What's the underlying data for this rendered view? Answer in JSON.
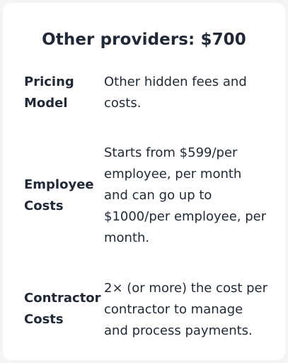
{
  "card": {
    "title": "Other providers: $700",
    "rows": [
      {
        "label_line1": "Pricing",
        "label_line2": "Model",
        "value_lines": [
          "Other hidden fees and",
          "costs."
        ]
      },
      {
        "label_line1": "Employee",
        "label_line2": "Costs",
        "value_lines": [
          "Starts from $599/per",
          "employee, per month",
          "and can go up to",
          "$1000/per employee, per",
          "month."
        ]
      },
      {
        "label_line1": "Contractor",
        "label_line2": "Costs",
        "value_lines": [
          "2× (or more) the cost per",
          "contractor to manage",
          "and process payments."
        ]
      }
    ]
  }
}
